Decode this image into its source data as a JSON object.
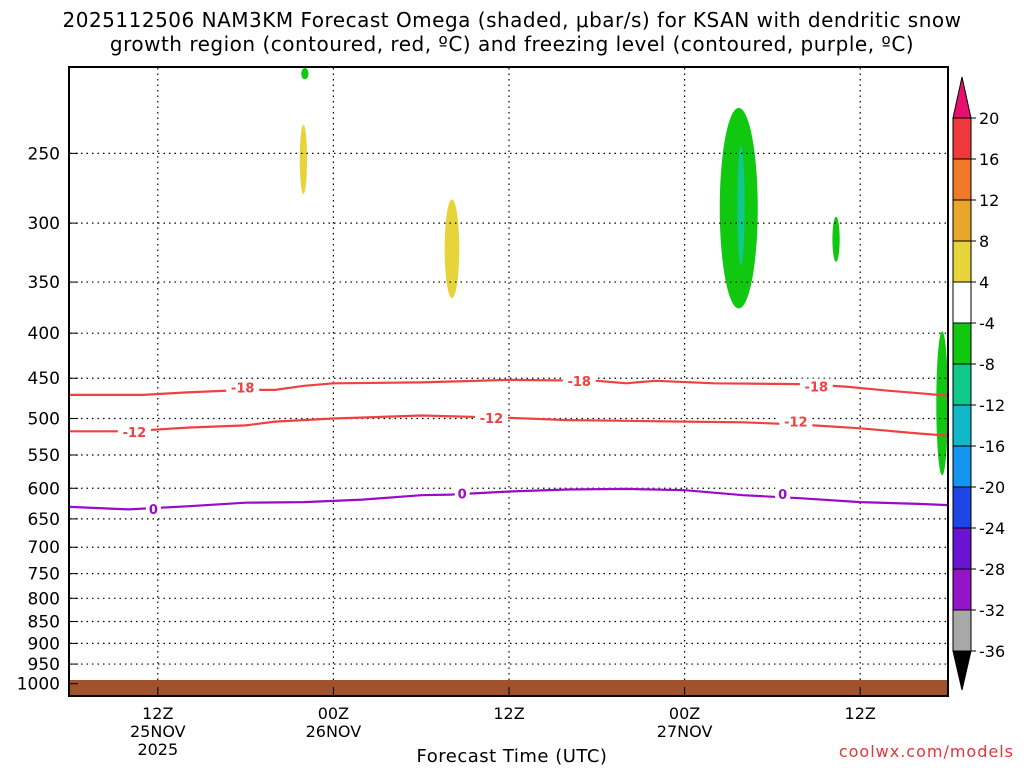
{
  "chart_data": {
    "type": "contour",
    "title": "2025112506 NAM3KM Forecast Omega (shaded, μbar/s) for KSAN with dendritic snow",
    "subtitle": "growth region (contoured, red, ºC) and freezing level (contoured, purple, ºC)",
    "xlabel": "Forecast Time (UTC)",
    "ylabel": "",
    "credit": "coolwx.com/models",
    "x_hours_range": [
      6,
      66
    ],
    "x_ticks": [
      {
        "hour": 12,
        "label1": "12Z",
        "label2": "25NOV",
        "label3": "2025"
      },
      {
        "hour": 24,
        "label1": "00Z",
        "label2": "26NOV",
        "label3": ""
      },
      {
        "hour": 36,
        "label1": "12Z",
        "label2": "",
        "label3": ""
      },
      {
        "hour": 48,
        "label1": "00Z",
        "label2": "27NOV",
        "label3": ""
      },
      {
        "hour": 60,
        "label1": "12Z",
        "label2": "",
        "label3": ""
      }
    ],
    "y_axis": {
      "scale": "log",
      "inverted": true,
      "range_hPa": [
        200,
        1030
      ],
      "ticks": [
        250,
        300,
        350,
        400,
        450,
        500,
        550,
        600,
        650,
        700,
        750,
        800,
        850,
        900,
        950,
        1000
      ]
    },
    "grid": true,
    "colorbar": {
      "position": "right",
      "labels": [
        "20",
        "16",
        "12",
        "8",
        "4",
        "-4",
        "-8",
        "-12",
        "-16",
        "-20",
        "-24",
        "-28",
        "-32",
        "-36"
      ],
      "colors": [
        "#e8106e",
        "#ee3a3a",
        "#f07a2a",
        "#e8a62a",
        "#e6d43a",
        "#ffffff",
        "#10c810",
        "#10c88a",
        "#10b8c8",
        "#1496f0",
        "#1e46e6",
        "#6a14d2",
        "#9614c8",
        "#a8a8a8",
        "#000000"
      ]
    },
    "series": [
      {
        "name": "-18",
        "color": "#f04040",
        "points": [
          [
            6,
            470
          ],
          [
            11,
            470
          ],
          [
            14,
            467
          ],
          [
            18,
            464
          ],
          [
            20,
            464
          ],
          [
            22,
            459
          ],
          [
            24,
            456
          ],
          [
            30,
            455
          ],
          [
            36,
            452
          ],
          [
            42,
            453
          ],
          [
            44,
            456
          ],
          [
            46,
            453
          ],
          [
            50,
            456
          ],
          [
            56,
            457
          ],
          [
            59,
            460
          ],
          [
            62,
            465
          ],
          [
            64,
            468
          ],
          [
            66,
            471
          ]
        ],
        "labels": [
          [
            17.8,
            461
          ],
          [
            40.8,
            453
          ],
          [
            57.0,
            460
          ]
        ]
      },
      {
        "name": "-12",
        "color": "#f04040",
        "points": [
          [
            6,
            517
          ],
          [
            10,
            517
          ],
          [
            14,
            512
          ],
          [
            18,
            509
          ],
          [
            20,
            504
          ],
          [
            24,
            500
          ],
          [
            30,
            496
          ],
          [
            36,
            499
          ],
          [
            40,
            502
          ],
          [
            44,
            503
          ],
          [
            48,
            504
          ],
          [
            52,
            505
          ],
          [
            56,
            508
          ],
          [
            60,
            513
          ],
          [
            64,
            520
          ],
          [
            66,
            523
          ]
        ],
        "labels": [
          [
            10.4,
            518
          ],
          [
            34.8,
            499
          ],
          [
            55.6,
            504
          ]
        ]
      },
      {
        "name": "0",
        "color": "#9a0ac8",
        "points": [
          [
            6,
            630
          ],
          [
            10,
            634
          ],
          [
            14,
            629
          ],
          [
            18,
            623
          ],
          [
            22,
            622
          ],
          [
            26,
            618
          ],
          [
            30,
            611
          ],
          [
            32,
            610
          ],
          [
            36,
            605
          ],
          [
            40,
            602
          ],
          [
            44,
            601
          ],
          [
            48,
            603
          ],
          [
            50,
            607
          ],
          [
            52,
            611
          ],
          [
            56,
            616
          ],
          [
            60,
            622
          ],
          [
            64,
            625
          ],
          [
            66,
            627
          ]
        ],
        "labels": [
          [
            11.7,
            633
          ],
          [
            32.8,
            608
          ],
          [
            54.7,
            609
          ]
        ]
      }
    ],
    "shaded_regions": [
      {
        "omega": "4 to 8",
        "color": "#e6d43a",
        "x_hours": [
          21.7,
          22.2
        ],
        "p_hPa": [
          232,
          278
        ]
      },
      {
        "omega": "-4 to -8",
        "color": "#10c810",
        "x_hours": [
          21.8,
          22.3
        ],
        "p_hPa": [
          200,
          206
        ]
      },
      {
        "omega": "4 to 8",
        "color": "#e6d43a",
        "x_hours": [
          31.6,
          32.6
        ],
        "p_hPa": [
          282,
          365
        ]
      },
      {
        "omega": "-4 to -8",
        "color": "#10c810",
        "x_hours": [
          50.4,
          53.0
        ],
        "p_hPa": [
          222,
          375
        ]
      },
      {
        "omega": "-8 to -12",
        "color": "#10c88a",
        "x_hours": [
          51.6,
          52.1
        ],
        "p_hPa": [
          245,
          335
        ]
      },
      {
        "omega": "-4 to -8",
        "color": "#10c810",
        "x_hours": [
          58.1,
          58.6
        ],
        "p_hPa": [
          295,
          332
        ]
      },
      {
        "omega": "-4 to -8",
        "color": "#10c810",
        "x_hours": [
          65.2,
          66.0
        ],
        "p_hPa": [
          398,
          580
        ]
      }
    ],
    "ground_color": "#a0522d"
  }
}
